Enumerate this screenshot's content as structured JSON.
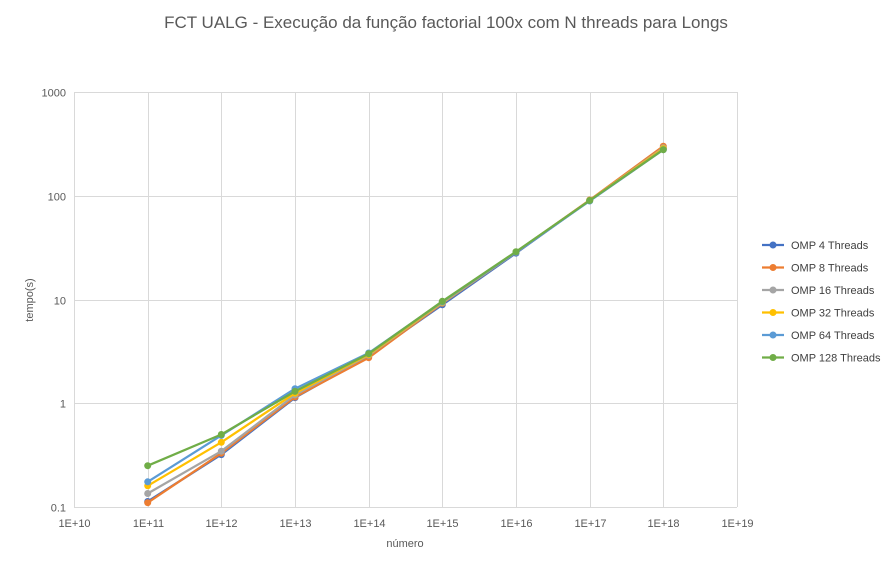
{
  "chart_data": {
    "type": "line",
    "title": "FCT UALG - Execução da função factorial 100x com N threads para Longs",
    "xlabel": "número",
    "ylabel": "tempo(s)",
    "x_scale": "log",
    "y_scale": "log",
    "xlim": [
      10000000000.0,
      1e+19
    ],
    "ylim": [
      0.1,
      1000
    ],
    "x_tick_values": [
      10000000000.0,
      100000000000.0,
      1000000000000.0,
      10000000000000.0,
      100000000000000.0,
      1000000000000000.0,
      1e+16,
      1e+17,
      1e+18,
      1e+19
    ],
    "x_tick_labels": [
      "1E+10",
      "1E+11",
      "1E+12",
      "1E+13",
      "1E+14",
      "1E+15",
      "1E+16",
      "1E+17",
      "1E+18",
      "1E+19"
    ],
    "y_tick_values": [
      0.1,
      1,
      10,
      100,
      1000
    ],
    "y_tick_labels": [
      "0.1",
      "1",
      "10",
      "100",
      "1000"
    ],
    "grid": true,
    "legend_position": "right",
    "x": [
      100000000000.0,
      1000000000000.0,
      10000000000000.0,
      100000000000000.0,
      1000000000000000.0,
      1e+16,
      1e+17,
      1e+18
    ],
    "series": [
      {
        "name": "OMP 4 Threads",
        "color": "#4472C4",
        "values": [
          0.113,
          0.32,
          1.13,
          2.85,
          8.9,
          28,
          90,
          285
        ]
      },
      {
        "name": "OMP 8 Threads",
        "color": "#ED7D31",
        "values": [
          0.11,
          0.33,
          1.15,
          2.75,
          9.2,
          28.5,
          91,
          300
        ]
      },
      {
        "name": "OMP 16 Threads",
        "color": "#A5A5A5",
        "values": [
          0.135,
          0.345,
          1.2,
          2.9,
          9.3,
          28.5,
          90,
          290
        ]
      },
      {
        "name": "OMP 32 Threads",
        "color": "#FFC000",
        "values": [
          0.16,
          0.42,
          1.25,
          2.95,
          9.4,
          28.7,
          90,
          285
        ]
      },
      {
        "name": "OMP 64 Threads",
        "color": "#5B9BD5",
        "values": [
          0.175,
          0.49,
          1.38,
          3.05,
          9.5,
          28.6,
          89,
          278
        ]
      },
      {
        "name": "OMP 128 Threads",
        "color": "#70AD47",
        "values": [
          0.25,
          0.5,
          1.3,
          3.0,
          9.6,
          28.9,
          90,
          278
        ]
      }
    ]
  }
}
